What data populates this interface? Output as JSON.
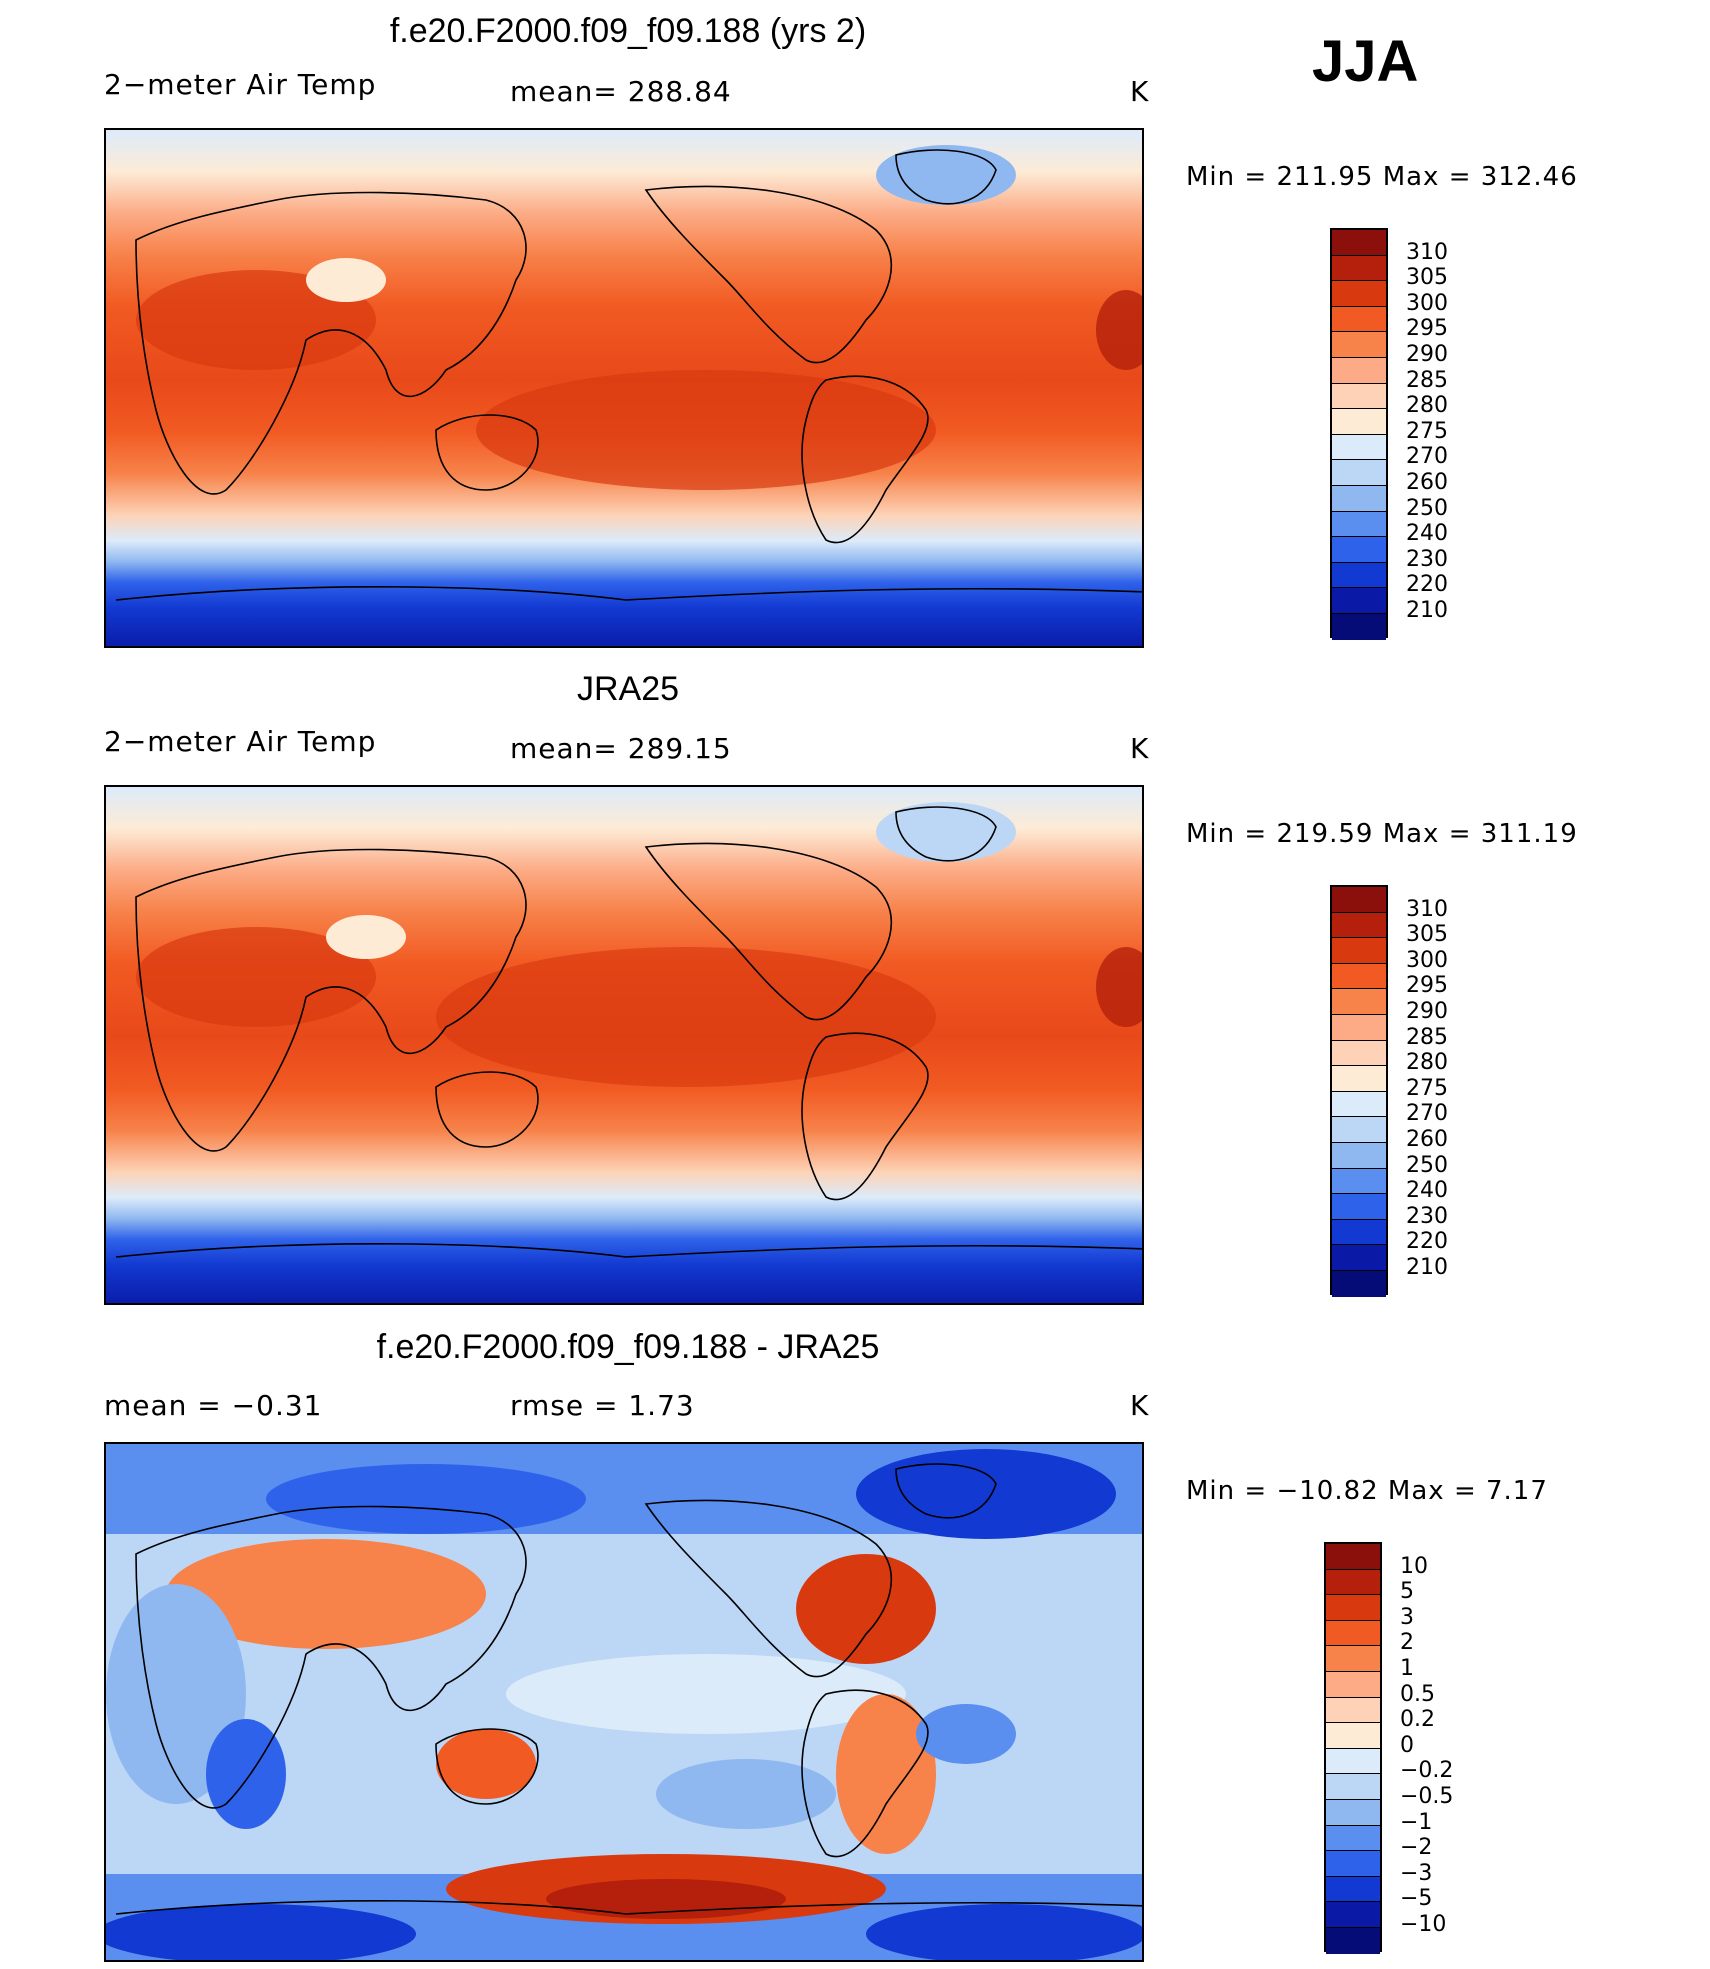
{
  "season": "JJA",
  "panels": [
    {
      "title": "f.e20.F2000.f09_f09.188 (yrs 2)",
      "left_label": "2−meter Air Temp",
      "center_label": "mean=  288.84",
      "units": "K",
      "minmax": "Min  =  211.95  Max  =  312.46"
    },
    {
      "title": "JRA25",
      "left_label": "2−meter Air Temp",
      "center_label": "mean=  289.15",
      "units": "K",
      "minmax": "Min  =  219.59  Max  =  311.19"
    },
    {
      "title": "f.e20.F2000.f09_f09.188 - JRA25",
      "left_label": "mean  =     −0.31",
      "center_label": "rmse  =     1.73",
      "units": "K",
      "minmax": "Min  =  −10.82  Max  =      7.17"
    }
  ],
  "chart_data": [
    {
      "type": "heatmap",
      "title": "f.e20.F2000.f09_f09.188 (yrs 2)",
      "variable": "2-meter Air Temp",
      "units": "K",
      "mean": 288.84,
      "min": 211.95,
      "max": 312.46,
      "colorbar_levels": [
        "310",
        "305",
        "300",
        "295",
        "290",
        "285",
        "280",
        "275",
        "270",
        "260",
        "250",
        "240",
        "230",
        "220",
        "210"
      ],
      "colorbar_colors": [
        "#8b0f0a",
        "#b4200b",
        "#d9390f",
        "#f15a22",
        "#f7824a",
        "#fcab86",
        "#fdd2b6",
        "#fdebd6",
        "#dcebfa",
        "#bcd6f5",
        "#8fb8f0",
        "#5a8ff0",
        "#2f62ea",
        "#1239d1",
        "#0a1aa6",
        "#050c78"
      ]
    },
    {
      "type": "heatmap",
      "title": "JRA25",
      "variable": "2-meter Air Temp",
      "units": "K",
      "mean": 289.15,
      "min": 219.59,
      "max": 311.19,
      "colorbar_levels": [
        "310",
        "305",
        "300",
        "295",
        "290",
        "285",
        "280",
        "275",
        "270",
        "260",
        "250",
        "240",
        "230",
        "220",
        "210"
      ],
      "colorbar_colors": [
        "#8b0f0a",
        "#b4200b",
        "#d9390f",
        "#f15a22",
        "#f7824a",
        "#fcab86",
        "#fdd2b6",
        "#fdebd6",
        "#dcebfa",
        "#bcd6f5",
        "#8fb8f0",
        "#5a8ff0",
        "#2f62ea",
        "#1239d1",
        "#0a1aa6",
        "#050c78"
      ]
    },
    {
      "type": "heatmap",
      "title": "f.e20.F2000.f09_f09.188 - JRA25",
      "units": "K",
      "mean": -0.31,
      "rmse": 1.73,
      "min": -10.82,
      "max": 7.17,
      "colorbar_levels": [
        "10",
        "5",
        "3",
        "2",
        "1",
        "0.5",
        "0.2",
        "0",
        "−0.2",
        "−0.5",
        "−1",
        "−2",
        "−3",
        "−5",
        "−10"
      ],
      "colorbar_colors": [
        "#8b0f0a",
        "#b4200b",
        "#d9390f",
        "#f15a22",
        "#f7824a",
        "#fcab86",
        "#fdd2b6",
        "#fdebd6",
        "#dcebfa",
        "#bcd6f5",
        "#8fb8f0",
        "#5a8ff0",
        "#2f62ea",
        "#1239d1",
        "#0a1aa6",
        "#050c78"
      ]
    }
  ]
}
